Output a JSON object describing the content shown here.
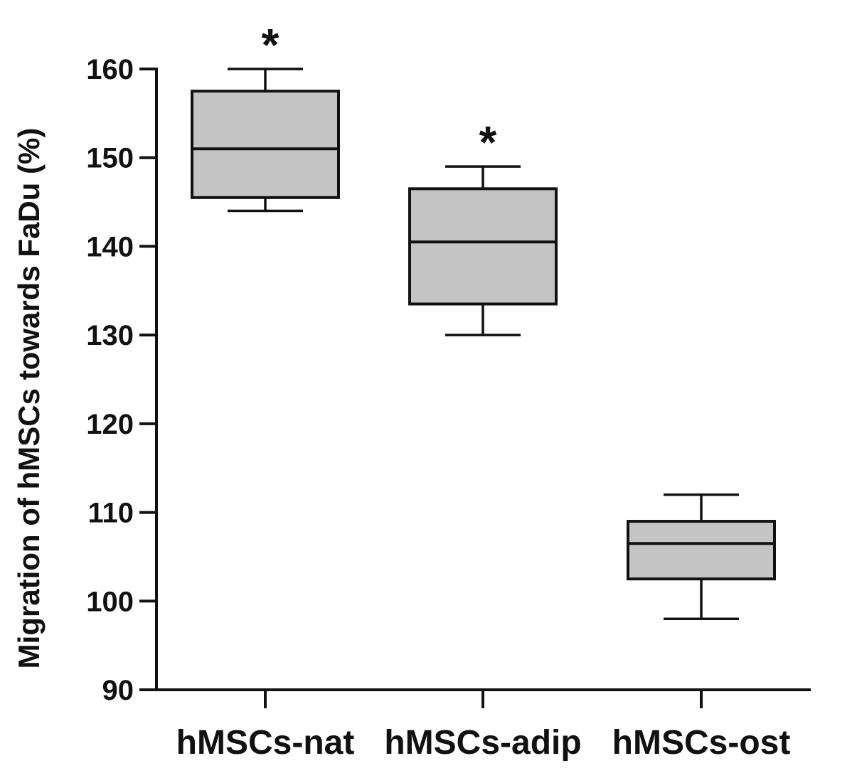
{
  "chart_data": {
    "type": "box",
    "ylabel": "Migration of hMSCs towards FaDu (%)",
    "xlabel": "",
    "ylim": [
      90,
      160
    ],
    "yticks": [
      90,
      100,
      110,
      120,
      130,
      140,
      150,
      160
    ],
    "categories": [
      "hMSCs-nat",
      "hMSCs-adip",
      "hMSCs-ost"
    ],
    "boxes": [
      {
        "min": 144,
        "q1": 145.5,
        "median": 151,
        "q3": 157.5,
        "max": 160,
        "annotation": "*"
      },
      {
        "min": 130,
        "q1": 133.5,
        "median": 140.5,
        "q3": 146.5,
        "max": 149,
        "annotation": "*"
      },
      {
        "min": 98,
        "q1": 102.5,
        "median": 106.5,
        "q3": 109,
        "max": 112,
        "annotation": ""
      }
    ],
    "box_fill": "#c4c4c4",
    "line_color": "#111111",
    "grid": false,
    "legend": "none"
  }
}
